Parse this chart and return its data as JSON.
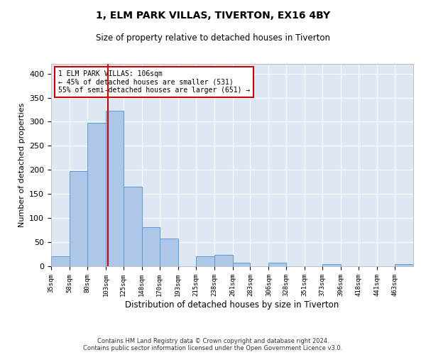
{
  "title": "1, ELM PARK VILLAS, TIVERTON, EX16 4BY",
  "subtitle": "Size of property relative to detached houses in Tiverton",
  "xlabel": "Distribution of detached houses by size in Tiverton",
  "ylabel": "Number of detached properties",
  "footer_line1": "Contains HM Land Registry data © Crown copyright and database right 2024.",
  "footer_line2": "Contains public sector information licensed under the Open Government Licence v3.0.",
  "annotation_line1": "1 ELM PARK VILLAS: 106sqm",
  "annotation_line2": "← 45% of detached houses are smaller (531)",
  "annotation_line3": "55% of semi-detached houses are larger (651) →",
  "property_size": 106,
  "bar_edges": [
    35,
    58,
    80,
    103,
    125,
    148,
    170,
    193,
    215,
    238,
    261,
    283,
    306,
    328,
    351,
    373,
    396,
    418,
    441,
    463,
    486
  ],
  "bar_heights": [
    20,
    197,
    298,
    323,
    165,
    81,
    57,
    0,
    21,
    23,
    8,
    0,
    7,
    0,
    0,
    5,
    0,
    0,
    0,
    5
  ],
  "bar_color": "#aec6e8",
  "bar_edge_color": "#5b9bd5",
  "vline_color": "#cc0000",
  "vline_x": 106,
  "annotation_box_color": "#cc0000",
  "background_color": "#dde8f4",
  "ylim": [
    0,
    420
  ],
  "yticks": [
    0,
    50,
    100,
    150,
    200,
    250,
    300,
    350,
    400
  ]
}
